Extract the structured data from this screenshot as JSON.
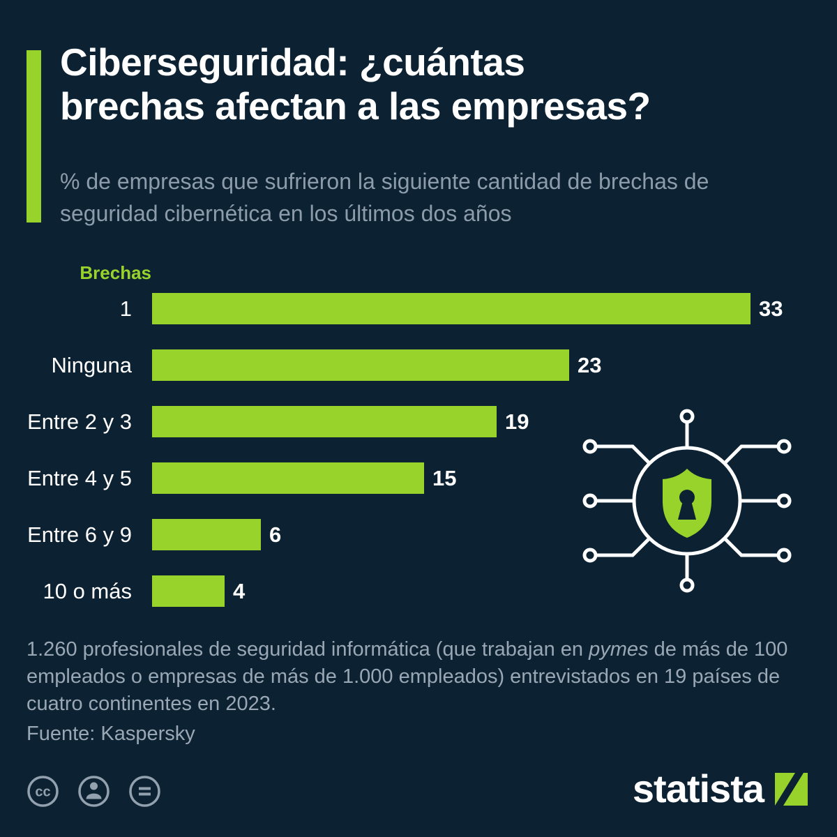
{
  "colors": {
    "background": "#0c2233",
    "accent_green": "#98d32b",
    "title": "#ffffff",
    "subtitle_gray": "#8c9cab",
    "footer_gray": "#9aa7b4",
    "icon_gray": "#93a1af"
  },
  "header": {
    "title_line1": "Ciberseguridad: ¿cuántas",
    "title_line2": "brechas afectan a las empresas?",
    "subtitle": "% de empresas que sufrieron la siguiente cantidad de brechas de seguridad cibernética en los últimos dos años"
  },
  "chart_data": {
    "type": "bar",
    "orientation": "horizontal",
    "legend_label": "Brechas",
    "categories": [
      "1",
      "Ninguna",
      "Entre 2 y 3",
      "Entre 4 y 5",
      "Entre 6 y 9",
      "10 o más"
    ],
    "values": [
      33,
      23,
      19,
      15,
      6,
      4
    ],
    "xlim": [
      0,
      33
    ],
    "bar_color": "#98d32b",
    "grid": false,
    "value_labels": true,
    "legend_position": "top-left"
  },
  "footer": {
    "note_part1": "1.260 profesionales de seguridad informática (que trabajan en ",
    "note_italic": "pymes",
    "note_part2": " de más de 100 empleados o empresas de más de 1.000 empleados) entrevistados en 19 países de cuatro continentes en 2023.",
    "source": "Fuente: Kaspersky"
  },
  "branding": {
    "logo_text": "statista",
    "license_icons": [
      "cc",
      "attribution",
      "equal"
    ]
  }
}
